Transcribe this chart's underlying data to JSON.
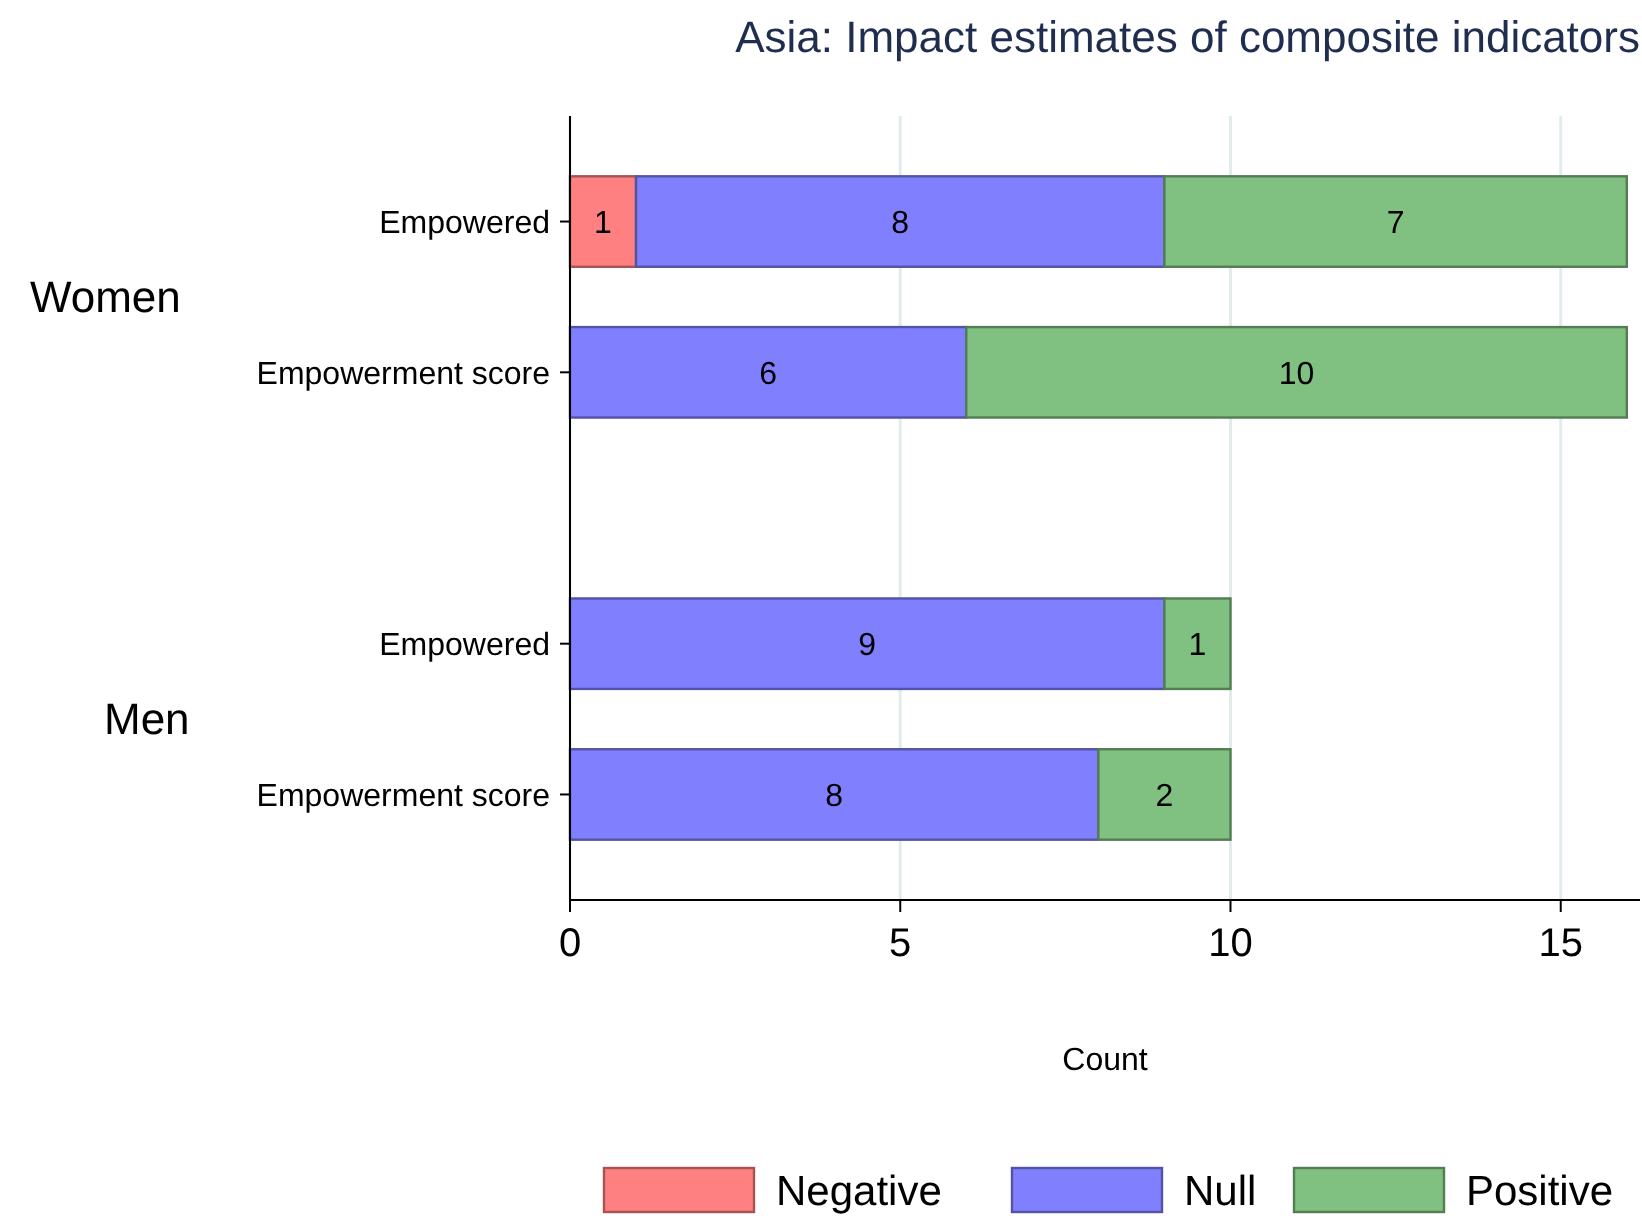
{
  "chart_data": {
    "type": "bar",
    "orientation": "horizontal",
    "stacked": true,
    "title": "Asia: Impact estimates of composite indicators",
    "xlabel": "Count",
    "categories": [
      "Empowered",
      "Empowerment score",
      null,
      "Empowered",
      "Empowerment score"
    ],
    "series": [
      {
        "name": "Negative",
        "color": "#ff8080",
        "values": [
          1,
          null,
          null,
          null,
          null
        ]
      },
      {
        "name": "Null",
        "color": "#8080ff",
        "values": [
          8,
          6,
          null,
          9,
          8
        ]
      },
      {
        "name": "Positive",
        "color": "#80c080",
        "values": [
          7,
          10,
          null,
          1,
          2
        ]
      }
    ],
    "annotations": [
      "Women",
      "Men"
    ],
    "xlim": [
      0,
      16.2
    ],
    "xticks": [
      0,
      5,
      10,
      15
    ],
    "grid": "x",
    "legend": "bottom",
    "data_labels": true
  }
}
